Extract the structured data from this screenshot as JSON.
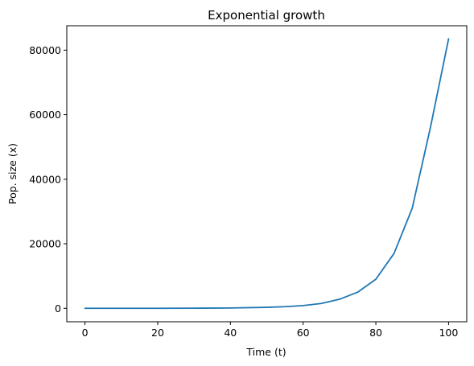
{
  "chart_data": {
    "type": "line",
    "title": "Exponential growth",
    "xlabel": "Time (t)",
    "ylabel": "Pop. size (x)",
    "xlim": [
      -5,
      105
    ],
    "ylim": [
      -4170,
      87560
    ],
    "x_ticks": [
      0,
      20,
      40,
      60,
      80,
      100
    ],
    "x_tick_labels": [
      "0",
      "20",
      "40",
      "60",
      "80",
      "100"
    ],
    "y_ticks": [
      0,
      20000,
      40000,
      60000,
      80000
    ],
    "y_tick_labels": [
      "0",
      "20000",
      "40000",
      "60000",
      "80000"
    ],
    "grid": false,
    "series": [
      {
        "color": "#1f77b4",
        "x": [
          0,
          10,
          20,
          30,
          40,
          50,
          55,
          60,
          65,
          70,
          75,
          80,
          85,
          90,
          95,
          100
        ],
        "y": [
          1,
          3,
          10,
          30,
          90,
          300,
          500,
          850,
          1500,
          2800,
          5000,
          9000,
          17000,
          31000,
          56000,
          83500
        ]
      }
    ]
  }
}
